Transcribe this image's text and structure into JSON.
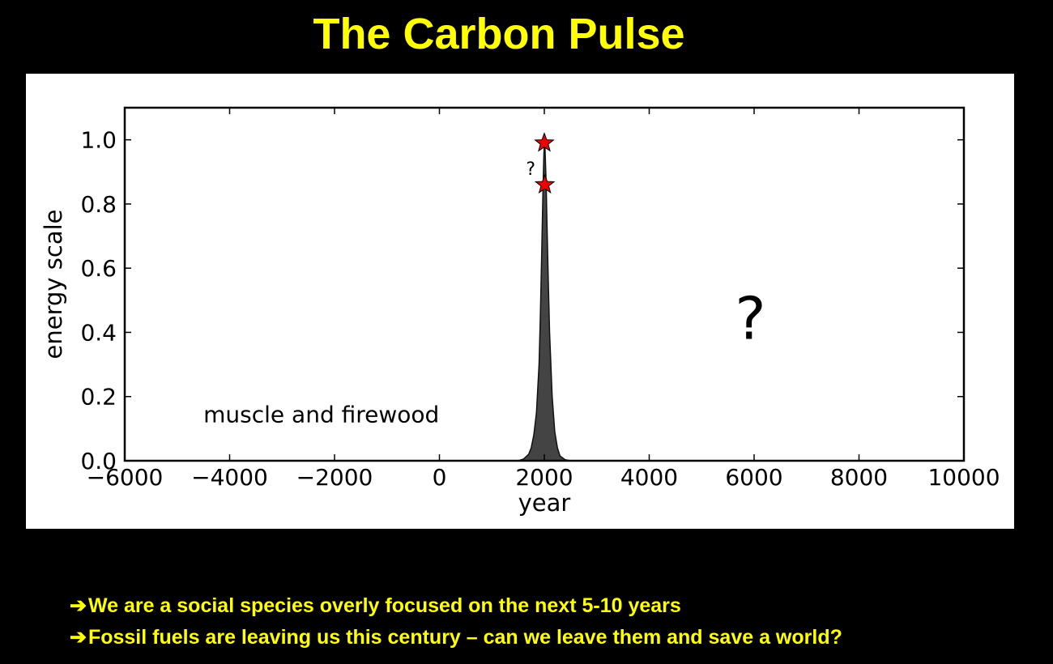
{
  "slide": {
    "title": "The Carbon Pulse",
    "bullet_arrow": "➔",
    "bullets": [
      "We are a social species overly focused on the next 5-10 years",
      "Fossil fuels are leaving us this century – can we leave them and save a world?"
    ]
  },
  "colors": {
    "background": "#000000",
    "title": "#ffff00",
    "panel": "#ffffff",
    "pulse_fill": "#444444",
    "star_fill": "#ee0000"
  },
  "chart_data": {
    "type": "area",
    "title": "",
    "xlabel": "year",
    "ylabel": "energy scale",
    "xlim": [
      -6000,
      10000
    ],
    "ylim": [
      0,
      1.1
    ],
    "xticks": [
      -6000,
      -4000,
      -2000,
      0,
      2000,
      4000,
      6000,
      8000,
      10000
    ],
    "xtick_labels": [
      "−6000",
      "−4000",
      "−2000",
      "0",
      "2000",
      "4000",
      "6000",
      "8000",
      "10000"
    ],
    "yticks": [
      0,
      0.2,
      0.4,
      0.6,
      0.8,
      1.0
    ],
    "ytick_labels": [
      "0.0",
      "0.2",
      "0.4",
      "0.6",
      "0.8",
      "1.0"
    ],
    "grid": false,
    "series": [
      {
        "x": [
          1500,
          1600,
          1700,
          1750,
          1800,
          1850,
          1900,
          1925,
          1950,
          1975,
          1990,
          2000,
          2010,
          2020,
          2035,
          2050,
          2075,
          2100,
          2150,
          2200,
          2250,
          2300,
          2400,
          2500
        ],
        "y": [
          0.0,
          0.005,
          0.02,
          0.04,
          0.08,
          0.15,
          0.3,
          0.45,
          0.65,
          0.85,
          0.95,
          0.99,
          0.99,
          0.94,
          0.86,
          0.75,
          0.56,
          0.4,
          0.2,
          0.09,
          0.04,
          0.015,
          0.003,
          0.0
        ]
      }
    ],
    "markers": [
      {
        "x": 2000,
        "y": 0.99,
        "shape": "star"
      },
      {
        "x": 2010,
        "y": 0.86,
        "shape": "star"
      }
    ],
    "annotations": [
      {
        "text": "muscle and firewood",
        "x": -4500,
        "y": 0.12
      },
      {
        "text": "?",
        "x": 5930,
        "y": 0.38
      },
      {
        "text": "?",
        "x": 1740,
        "y": 0.89
      }
    ]
  }
}
